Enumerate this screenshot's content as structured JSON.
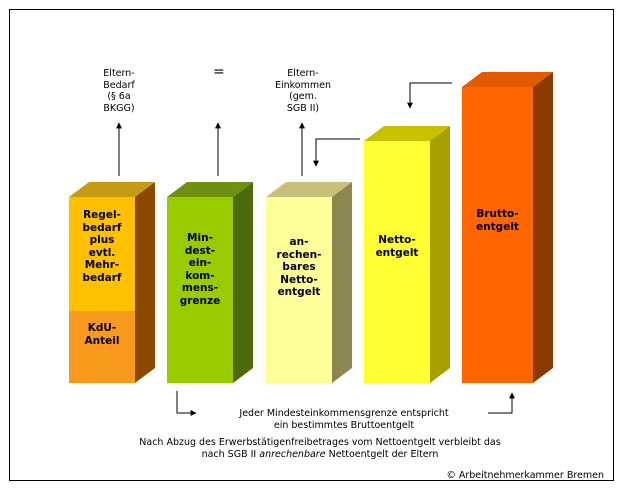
{
  "labels": {
    "eltern_bedarf": [
      "Eltern-",
      "Bedarf",
      "(§ 6a",
      "BKGG)"
    ],
    "equals": "=",
    "eltern_einkommen": [
      "Eltern-",
      "Einkommen",
      "(gem.",
      "SGB II)"
    ]
  },
  "bars": {
    "regelbedarf": "Regel-\nbedarf\nplus\nevtl.\nMehr-\nbedarf",
    "kdu": "KdU-\nAnteil",
    "mindest": "Min-\ndest-\nein-\nkom-\nmens-\ngrenze",
    "anrechenbar": "an-\nrechen-\nbares\nNetto-\nentgelt",
    "netto": "Netto-\nentgelt",
    "brutto": "Brutto-\nentgelt"
  },
  "notes": {
    "mindest_line1": "Jeder Mindesteinkommensgrenze entspricht",
    "mindest_line2": "ein bestimmtes Bruttoentgelt",
    "abzug_line1": "Nach Abzug des Erwerbstätigenfreibetrages vom Nettoentgelt verbleibt das",
    "abzug_line2_pre": "nach SGB II ",
    "abzug_line2_em": "anrechenbare",
    "abzug_line2_post": " Nettoentgelt der Eltern"
  },
  "copyright": "© Arbeitnehmerkammer Bremen",
  "colors": {
    "regelbedarf": "#FFC000",
    "kdu": "#F79A1E",
    "mindest": "#99CC00",
    "anrechenbar": "#FFFF99",
    "netto": "#FFFF33",
    "brutto": "#FF6600"
  }
}
